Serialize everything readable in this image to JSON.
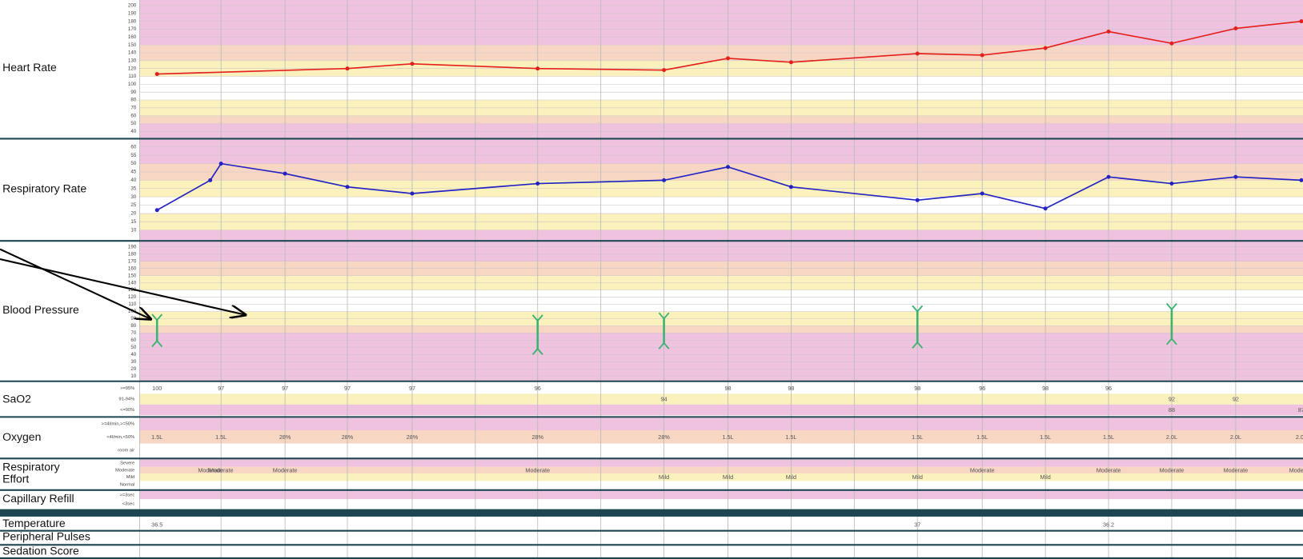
{
  "chart_data": [
    {
      "type": "line",
      "title": "Heart Rate",
      "categories": [
        null,
        null,
        null,
        null,
        null,
        null,
        null,
        null,
        null,
        null,
        null,
        null,
        null,
        null
      ],
      "series": [
        {
          "color": "#e3201c",
          "values": [
            113,
            120,
            126,
            120,
            118,
            133,
            128,
            139,
            137,
            146,
            167,
            152,
            171,
            180
          ]
        }
      ],
      "ylim": [
        35,
        205
      ],
      "yticks": [
        40,
        50,
        60,
        70,
        80,
        90,
        100,
        110,
        120,
        130,
        140,
        150,
        160,
        170,
        180,
        190,
        200
      ],
      "grid": true,
      "zones": [
        {
          "from": 35,
          "to": 50,
          "color": "#efc3df"
        },
        {
          "from": 50,
          "to": 60,
          "color": "#f7d6c4"
        },
        {
          "from": 60,
          "to": 80,
          "color": "#fbf1bd"
        },
        {
          "from": 80,
          "to": 110,
          "color": "#ffffff"
        },
        {
          "from": 110,
          "to": 130,
          "color": "#fbf1bd"
        },
        {
          "from": 130,
          "to": 150,
          "color": "#f7d6c4"
        },
        {
          "from": 150,
          "to": 205,
          "color": "#efc3df"
        }
      ]
    },
    {
      "type": "line",
      "title": "Respiratory Rate",
      "categories": [
        null,
        null,
        null,
        null,
        null,
        null,
        null,
        null,
        null,
        null,
        null,
        null,
        null,
        null,
        null,
        null,
        null
      ],
      "series": [
        {
          "color": "#2323c2",
          "values": [
            22,
            40,
            50,
            44,
            36,
            32,
            38,
            40,
            48,
            36,
            28,
            32,
            23,
            42,
            38,
            42,
            40
          ]
        }
      ],
      "ylim": [
        5,
        63
      ],
      "yticks": [
        10,
        15,
        20,
        25,
        30,
        35,
        40,
        45,
        50,
        55,
        60
      ],
      "grid": true,
      "zones": [
        {
          "from": 5,
          "to": 10,
          "color": "#efc3df"
        },
        {
          "from": 10,
          "to": 20,
          "color": "#fbf1bd"
        },
        {
          "from": 20,
          "to": 30,
          "color": "#ffffff"
        },
        {
          "from": 30,
          "to": 40,
          "color": "#fbf1bd"
        },
        {
          "from": 40,
          "to": 50,
          "color": "#f7d6c4"
        },
        {
          "from": 50,
          "to": 63,
          "color": "#efc3df"
        }
      ]
    },
    {
      "type": "range",
      "title": "Blood Pressure",
      "categories": [
        null,
        null,
        null,
        null,
        null
      ],
      "series": [
        {
          "color": "#3cb371",
          "high": [
            88,
            87,
            90,
            100,
            103
          ],
          "low": [
            59,
            48,
            56,
            57,
            62
          ]
        }
      ],
      "ylim": [
        5,
        195
      ],
      "yticks": [
        10,
        20,
        30,
        40,
        50,
        60,
        70,
        80,
        90,
        100,
        110,
        120,
        130,
        140,
        150,
        160,
        170,
        180,
        190
      ],
      "grid": true,
      "zones": [
        {
          "from": 5,
          "to": 70,
          "color": "#efc3df"
        },
        {
          "from": 70,
          "to": 80,
          "color": "#f7d6c4"
        },
        {
          "from": 80,
          "to": 100,
          "color": "#fbf1bd"
        },
        {
          "from": 100,
          "to": 130,
          "color": "#ffffff"
        },
        {
          "from": 130,
          "to": 150,
          "color": "#fbf1bd"
        },
        {
          "from": 150,
          "to": 170,
          "color": "#f7d6c4"
        },
        {
          "from": 170,
          "to": 195,
          "color": "#efc3df"
        }
      ]
    }
  ],
  "score_rows": [
    {
      "title": "SaO2",
      "levels": [
        {
          "label": ">=95%",
          "color": "#ffffff",
          "values": [
            100,
            null,
            97,
            97,
            97,
            97,
            96,
            null,
            98,
            98,
            98,
            96,
            98,
            96,
            null,
            null,
            null
          ]
        },
        {
          "label": "91-94%",
          "color": "#fbf1bd",
          "values": [
            null,
            null,
            null,
            null,
            null,
            null,
            null,
            94,
            null,
            null,
            null,
            null,
            null,
            null,
            92,
            92,
            null
          ]
        },
        {
          "label": "<=90%",
          "color": "#efc3df",
          "values": [
            null,
            null,
            null,
            null,
            null,
            null,
            null,
            null,
            null,
            null,
            null,
            null,
            null,
            null,
            88,
            null,
            87
          ]
        }
      ]
    },
    {
      "title": "Oxygen",
      "levels": [
        {
          "label": ">=4l/min,>=50%",
          "color": "#efc3df",
          "values": [
            null,
            null,
            null,
            null,
            null,
            null,
            null,
            null,
            null,
            null,
            null,
            null,
            null,
            null,
            null,
            null,
            null
          ]
        },
        {
          "label": "<4l/min,<50%",
          "color": "#f7d6c4",
          "values": [
            "1.5L",
            null,
            "1.5L",
            "28%",
            "28%",
            "28%",
            "28%",
            "28%",
            "1.5L",
            "1.5L",
            "1.5L",
            "1.5L",
            "1.5L",
            "1.5L",
            "2.0L",
            "2.0L",
            "2.0L"
          ]
        },
        {
          "label": "room air",
          "color": "#ffffff",
          "values": [
            null,
            null,
            null,
            null,
            null,
            null,
            null,
            null,
            null,
            null,
            null,
            null,
            null,
            null,
            null,
            null,
            null
          ]
        }
      ]
    },
    {
      "title": "Respiratory Effort",
      "levels": [
        {
          "label": "Severe",
          "color": "#efc3df",
          "values": [
            null,
            null,
            null,
            null,
            null,
            null,
            null,
            null,
            null,
            null,
            null,
            null,
            null,
            null,
            null,
            null,
            null
          ]
        },
        {
          "label": "Moderate",
          "color": "#f7d6c4",
          "values": [
            null,
            "Moderate",
            "Moderate",
            "Moderate",
            null,
            null,
            "Moderate",
            null,
            null,
            null,
            null,
            "Moderate",
            null,
            "Moderate",
            "Moderate",
            "Moderate",
            "Moderate"
          ]
        },
        {
          "label": "Mild",
          "color": "#fbf1bd",
          "values": [
            null,
            null,
            null,
            null,
            null,
            null,
            null,
            "Mild",
            "Mild",
            "Mild",
            "Mild",
            null,
            "Mild",
            null,
            null,
            null,
            null
          ]
        },
        {
          "label": "Normal",
          "color": "#ffffff",
          "values": [
            null,
            null,
            null,
            null,
            null,
            null,
            null,
            null,
            null,
            null,
            null,
            null,
            null,
            null,
            null,
            null,
            null
          ]
        }
      ]
    },
    {
      "title": "Capillary Refill",
      "levels": [
        {
          "label": ">=3sec",
          "color": "#efc3df",
          "values": [
            null,
            null,
            null,
            null,
            null,
            null,
            null,
            null,
            null,
            null,
            null,
            null,
            null,
            null,
            null,
            null,
            null
          ]
        },
        {
          "label": "<3sec",
          "color": "#ffffff",
          "values": [
            null,
            null,
            null,
            null,
            null,
            null,
            null,
            null,
            null,
            null,
            null,
            null,
            null,
            null,
            null,
            null,
            null
          ]
        }
      ]
    },
    {
      "title": "Temperature",
      "values": [
        36.5,
        null,
        null,
        null,
        null,
        null,
        null,
        null,
        null,
        null,
        37,
        null,
        null,
        36.2,
        null,
        null,
        null
      ]
    },
    {
      "title": "Peripheral Pulses"
    },
    {
      "title": "Sedation Score"
    }
  ]
}
